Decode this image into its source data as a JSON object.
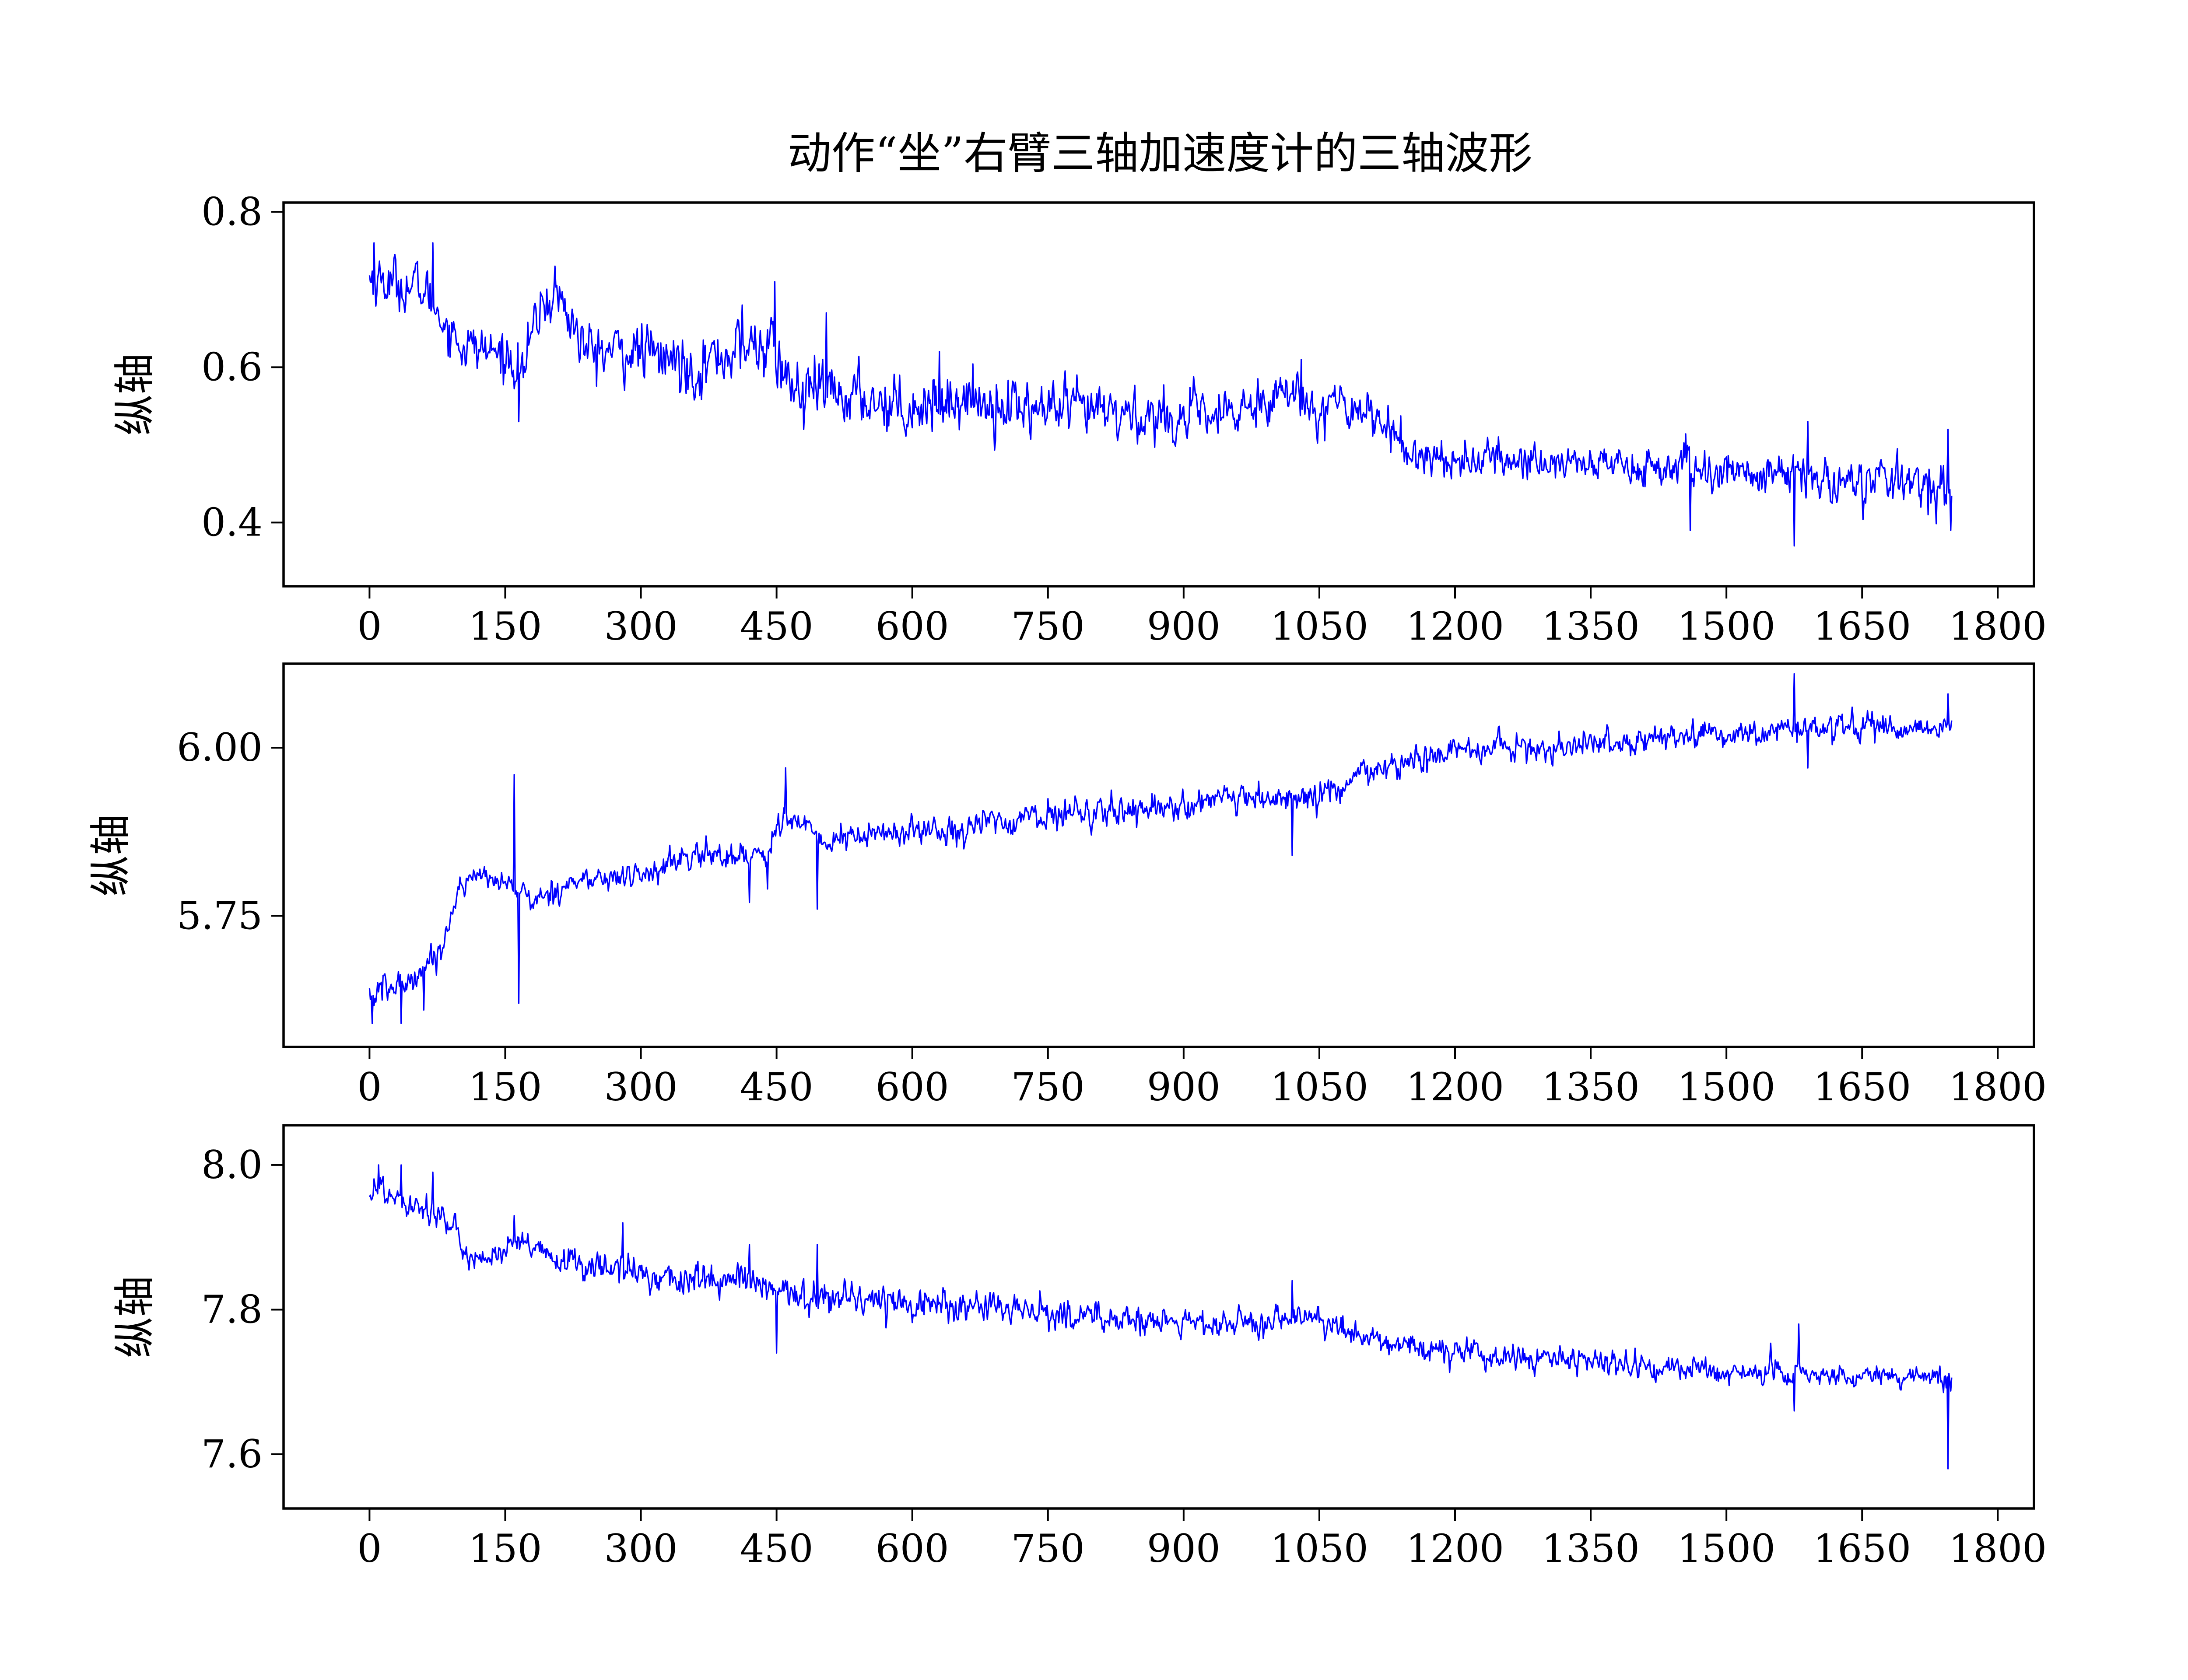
{
  "title": "动作“坐”右臂三轴加速度计的三轴波形",
  "colors": {
    "series": "#0000ff",
    "axes": "#000000",
    "background": "#ffffff"
  },
  "chart_data": [
    {
      "type": "line",
      "title": "",
      "xlabel": "",
      "ylabel": "纵轴",
      "xlim": [
        -95,
        1840
      ],
      "ylim": [
        0.318,
        0.812
      ],
      "xticks": [
        0,
        150,
        300,
        450,
        600,
        750,
        900,
        1050,
        1200,
        1350,
        1500,
        1650,
        1800
      ],
      "yticks": [
        0.4,
        0.6,
        0.8
      ],
      "ytick_labels": [
        "0.4",
        "0.6",
        "0.8"
      ],
      "grid": false,
      "n_points": 1750,
      "trend": [
        [
          0,
          0.715
        ],
        [
          60,
          0.7
        ],
        [
          100,
          0.63
        ],
        [
          150,
          0.615
        ],
        [
          170,
          0.6
        ],
        [
          190,
          0.68
        ],
        [
          210,
          0.69
        ],
        [
          240,
          0.62
        ],
        [
          300,
          0.62
        ],
        [
          360,
          0.6
        ],
        [
          400,
          0.62
        ],
        [
          440,
          0.63
        ],
        [
          470,
          0.57
        ],
        [
          550,
          0.56
        ],
        [
          600,
          0.55
        ],
        [
          650,
          0.56
        ],
        [
          750,
          0.545
        ],
        [
          820,
          0.54
        ],
        [
          900,
          0.535
        ],
        [
          950,
          0.535
        ],
        [
          1000,
          0.57
        ],
        [
          1060,
          0.55
        ],
        [
          1100,
          0.55
        ],
        [
          1150,
          0.49
        ],
        [
          1200,
          0.48
        ],
        [
          1300,
          0.48
        ],
        [
          1500,
          0.465
        ],
        [
          1600,
          0.455
        ],
        [
          1750,
          0.45
        ]
      ],
      "noise_std": [
        [
          0,
          0.022
        ],
        [
          100,
          0.02
        ],
        [
          400,
          0.026
        ],
        [
          500,
          0.025
        ],
        [
          1000,
          0.022
        ],
        [
          1200,
          0.016
        ],
        [
          1750,
          0.02
        ]
      ],
      "spikes": [
        [
          5,
          0.76
        ],
        [
          70,
          0.76
        ],
        [
          165,
          0.53
        ],
        [
          205,
          0.73
        ],
        [
          412,
          0.68
        ],
        [
          448,
          0.71
        ],
        [
          480,
          0.52
        ],
        [
          505,
          0.67
        ],
        [
          630,
          0.62
        ],
        [
          1030,
          0.61
        ],
        [
          1460,
          0.39
        ],
        [
          1575,
          0.37
        ],
        [
          1590,
          0.53
        ],
        [
          1745,
          0.52
        ],
        [
          1748,
          0.39
        ]
      ]
    },
    {
      "type": "line",
      "title": "",
      "xlabel": "",
      "ylabel": "纵轴",
      "xlim": [
        -95,
        1840
      ],
      "ylim": [
        5.555,
        6.125
      ],
      "xticks": [
        0,
        150,
        300,
        450,
        600,
        750,
        900,
        1050,
        1200,
        1350,
        1500,
        1650,
        1800
      ],
      "yticks": [
        5.75,
        6.0
      ],
      "ytick_labels": [
        "5.75",
        "6.00"
      ],
      "grid": false,
      "n_points": 1750,
      "trend": [
        [
          0,
          5.63
        ],
        [
          40,
          5.65
        ],
        [
          80,
          5.7
        ],
        [
          100,
          5.8
        ],
        [
          130,
          5.81
        ],
        [
          165,
          5.79
        ],
        [
          180,
          5.77
        ],
        [
          220,
          5.8
        ],
        [
          300,
          5.81
        ],
        [
          360,
          5.84
        ],
        [
          420,
          5.84
        ],
        [
          440,
          5.85
        ],
        [
          460,
          5.9
        ],
        [
          500,
          5.86
        ],
        [
          550,
          5.87
        ],
        [
          650,
          5.88
        ],
        [
          750,
          5.9
        ],
        [
          850,
          5.91
        ],
        [
          950,
          5.92
        ],
        [
          1030,
          5.925
        ],
        [
          1060,
          5.93
        ],
        [
          1100,
          5.96
        ],
        [
          1200,
          5.995
        ],
        [
          1300,
          6.0
        ],
        [
          1400,
          6.01
        ],
        [
          1500,
          6.02
        ],
        [
          1600,
          6.03
        ],
        [
          1750,
          6.03
        ]
      ],
      "noise_std": [
        [
          0,
          0.018
        ],
        [
          100,
          0.01
        ],
        [
          400,
          0.014
        ],
        [
          500,
          0.014
        ],
        [
          1000,
          0.014
        ],
        [
          1750,
          0.012
        ]
      ],
      "spikes": [
        [
          3,
          5.59
        ],
        [
          35,
          5.59
        ],
        [
          60,
          5.61
        ],
        [
          160,
          5.96
        ],
        [
          165,
          5.62
        ],
        [
          420,
          5.77
        ],
        [
          440,
          5.79
        ],
        [
          460,
          5.97
        ],
        [
          495,
          5.76
        ],
        [
          1020,
          5.84
        ],
        [
          1575,
          6.11
        ],
        [
          1590,
          5.97
        ],
        [
          1745,
          6.08
        ]
      ]
    },
    {
      "type": "line",
      "title": "",
      "xlabel": "",
      "ylabel": "纵轴",
      "xlim": [
        -95,
        1840
      ],
      "ylim": [
        7.525,
        8.055
      ],
      "xticks": [
        0,
        150,
        300,
        450,
        600,
        750,
        900,
        1050,
        1200,
        1350,
        1500,
        1650,
        1800
      ],
      "yticks": [
        7.6,
        7.8,
        8.0
      ],
      "ytick_labels": [
        "7.6",
        "7.8",
        "8.0"
      ],
      "grid": false,
      "n_points": 1750,
      "trend": [
        [
          0,
          7.97
        ],
        [
          50,
          7.95
        ],
        [
          80,
          7.93
        ],
        [
          100,
          7.89
        ],
        [
          120,
          7.87
        ],
        [
          150,
          7.88
        ],
        [
          170,
          7.89
        ],
        [
          200,
          7.87
        ],
        [
          250,
          7.86
        ],
        [
          300,
          7.85
        ],
        [
          350,
          7.84
        ],
        [
          420,
          7.84
        ],
        [
          450,
          7.82
        ],
        [
          500,
          7.82
        ],
        [
          600,
          7.81
        ],
        [
          700,
          7.8
        ],
        [
          800,
          7.79
        ],
        [
          900,
          7.78
        ],
        [
          1000,
          7.78
        ],
        [
          1040,
          7.79
        ],
        [
          1100,
          7.76
        ],
        [
          1200,
          7.74
        ],
        [
          1300,
          7.73
        ],
        [
          1500,
          7.715
        ],
        [
          1600,
          7.71
        ],
        [
          1750,
          7.705
        ]
      ],
      "noise_std": [
        [
          0,
          0.018
        ],
        [
          100,
          0.012
        ],
        [
          400,
          0.016
        ],
        [
          500,
          0.016
        ],
        [
          1000,
          0.012
        ],
        [
          1750,
          0.011
        ]
      ],
      "spikes": [
        [
          10,
          8.0
        ],
        [
          35,
          8.0
        ],
        [
          70,
          7.99
        ],
        [
          160,
          7.93
        ],
        [
          280,
          7.92
        ],
        [
          420,
          7.89
        ],
        [
          450,
          7.74
        ],
        [
          495,
          7.89
        ],
        [
          1020,
          7.84
        ],
        [
          1580,
          7.78
        ],
        [
          1575,
          7.66
        ],
        [
          1745,
          7.58
        ]
      ]
    }
  ]
}
